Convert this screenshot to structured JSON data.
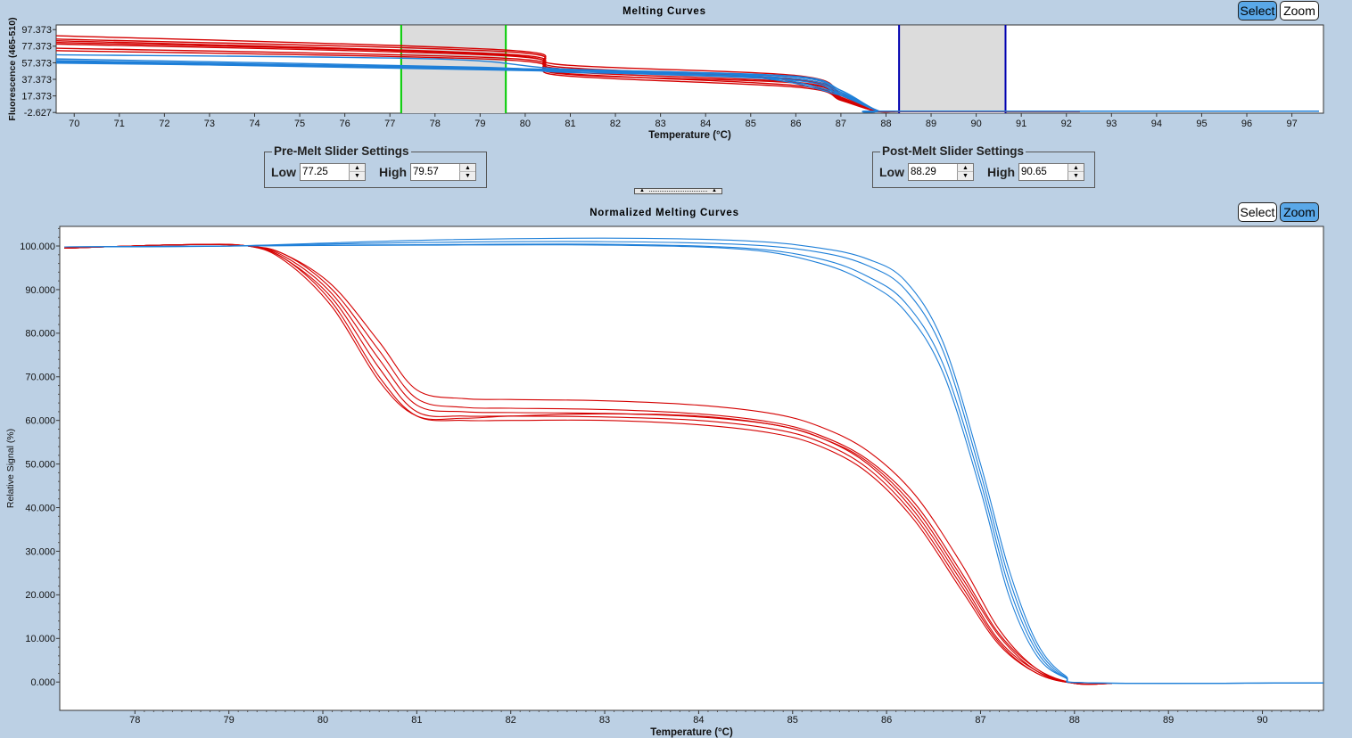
{
  "top_chart": {
    "title": "Melting Curves",
    "select_label": "Select",
    "zoom_label": "Zoom",
    "active_mode": "select"
  },
  "pre_melt": {
    "legend": "Pre-Melt Slider Settings",
    "low_label": "Low",
    "low_value": "77.25",
    "high_label": "High",
    "high_value": "79.57"
  },
  "post_melt": {
    "legend": "Post-Melt Slider Settings",
    "low_label": "Low",
    "low_value": "88.29",
    "high_label": "High",
    "high_value": "90.65"
  },
  "bottom_chart": {
    "title": "Normalized Melting Curves",
    "select_label": "Select",
    "zoom_label": "Zoom",
    "active_mode": "zoom"
  },
  "colors": {
    "background": "#bcd0e4",
    "red_series": "#d40000",
    "blue_series": "#1e7fd8",
    "pre_melt_slider": "#00cc00",
    "post_melt_slider": "#0000b0",
    "slider_region": "#dcdcdc",
    "active_button": "#5aa8e8"
  },
  "chart_data": [
    {
      "type": "line",
      "title": "Melting Curves",
      "xlabel": "Temperature (°C)",
      "ylabel": "Fluorescence (465-510)",
      "xlim": [
        69.6,
        97.7
      ],
      "ylim": [
        -3.5,
        103
      ],
      "x_ticks": [
        "70",
        "71",
        "72",
        "73",
        "74",
        "75",
        "76",
        "77",
        "78",
        "79",
        "80",
        "81",
        "82",
        "83",
        "84",
        "85",
        "86",
        "87",
        "88",
        "89",
        "90",
        "91",
        "92",
        "93",
        "94",
        "95",
        "96",
        "97"
      ],
      "y_ticks": [
        "97.373",
        "77.373",
        "57.373",
        "37.373",
        "17.373",
        "-2.627"
      ],
      "grid": false,
      "sliders": {
        "pre_melt": {
          "low": 77.25,
          "high": 79.57,
          "color": "#00cc00"
        },
        "post_melt": {
          "low": 88.29,
          "high": 90.65,
          "color": "#0000b0"
        }
      },
      "series": [
        {
          "group": "red",
          "x": [
            69.6,
            79.5,
            80.8,
            86,
            87,
            87.7,
            88.2
          ],
          "y": [
            90,
            73,
            55,
            42,
            20,
            0,
            -1.5
          ]
        },
        {
          "group": "red",
          "x": [
            69.6,
            79.5,
            80.8,
            86,
            87,
            87.7,
            88.2
          ],
          "y": [
            86,
            71,
            52,
            38,
            18,
            0,
            -1.5
          ]
        },
        {
          "group": "red",
          "x": [
            69.6,
            79.5,
            80.8,
            86,
            87,
            87.7,
            88.2
          ],
          "y": [
            84,
            68,
            50,
            37,
            16,
            0,
            -1.5
          ]
        },
        {
          "group": "red",
          "x": [
            69.6,
            79.5,
            80.8,
            86,
            87,
            87.7,
            88.2
          ],
          "y": [
            80,
            66,
            47,
            34,
            15,
            0,
            -1.5
          ]
        },
        {
          "group": "red",
          "x": [
            69.6,
            79.5,
            80.8,
            86,
            87,
            87.7,
            88.2
          ],
          "y": [
            75,
            63,
            45,
            30,
            13,
            0,
            -1.5
          ]
        },
        {
          "group": "red",
          "x": [
            69.6,
            79.5,
            80.8,
            86,
            87,
            87.7,
            88.2
          ],
          "y": [
            72,
            61,
            42,
            28,
            12,
            0,
            -1.5
          ]
        },
        {
          "group": "red",
          "x": [
            69.6,
            79.5,
            80.8,
            86,
            87,
            87.7,
            88.2,
            92.3
          ],
          "y": [
            82,
            67,
            44,
            33,
            14,
            0,
            -1.5,
            -1.5
          ]
        },
        {
          "group": "blue",
          "x": [
            69.6,
            80,
            82,
            86,
            87,
            87.8,
            88.3,
            97.6
          ],
          "y": [
            59,
            49,
            47,
            40,
            22,
            0,
            -1,
            -1
          ]
        },
        {
          "group": "blue",
          "x": [
            69.6,
            80,
            82,
            86,
            87,
            87.8,
            88.3,
            97.6
          ],
          "y": [
            58,
            48,
            46,
            38,
            20,
            0,
            -1,
            -1
          ]
        },
        {
          "group": "blue",
          "x": [
            69.6,
            80,
            82,
            86,
            87,
            87.8,
            88.3,
            97.6
          ],
          "y": [
            60,
            50,
            45,
            36,
            18,
            0,
            -1,
            -1
          ]
        },
        {
          "group": "blue",
          "x": [
            69.6,
            80,
            82,
            86,
            87,
            87.8,
            88.3,
            97.6
          ],
          "y": [
            57,
            50,
            48,
            41,
            24,
            0,
            -1,
            -1
          ]
        },
        {
          "group": "blue",
          "x": [
            69.6,
            78,
            80.8,
            85,
            87,
            87.8,
            88.3,
            97.6
          ],
          "y": [
            67,
            62,
            50,
            42,
            20,
            0,
            -1,
            -1
          ]
        },
        {
          "group": "blue",
          "x": [
            69.6,
            79,
            80.8,
            85,
            87,
            87.8,
            88.3,
            97.6
          ],
          "y": [
            62,
            52,
            46,
            40,
            18,
            0,
            -1,
            -1
          ]
        }
      ]
    },
    {
      "type": "line",
      "title": "Normalized Melting Curves",
      "xlabel": "Temperature (°C)",
      "ylabel": "Relative Signal (%)",
      "xlim": [
        77.2,
        90.65
      ],
      "ylim": [
        -6.5,
        104.5
      ],
      "x_ticks": [
        "78",
        "79",
        "80",
        "81",
        "82",
        "83",
        "84",
        "85",
        "86",
        "87",
        "88",
        "89",
        "90"
      ],
      "y_ticks": [
        "0.000",
        "10.000",
        "20.000",
        "30.000",
        "40.000",
        "50.000",
        "60.000",
        "70.000",
        "80.000",
        "90.000",
        "100.000"
      ],
      "grid": false,
      "series": [
        {
          "group": "red",
          "x": [
            77.25,
            78.5,
            79.2,
            79.6,
            80.1,
            80.6,
            81.0,
            81.5,
            82,
            83,
            84,
            84.8,
            85.3,
            85.8,
            86.3,
            86.8,
            87.2,
            87.6,
            88.0,
            88.4
          ],
          "y": [
            99.5,
            100.3,
            100,
            98,
            91,
            78,
            67,
            65,
            64.8,
            64.5,
            63.5,
            61.5,
            58.5,
            53,
            43,
            27,
            12,
            3,
            -0.3,
            -0.3
          ]
        },
        {
          "group": "red",
          "x": [
            77.25,
            78.5,
            79.2,
            79.6,
            80.1,
            80.6,
            81.0,
            81.5,
            82,
            83,
            84,
            84.8,
            85.3,
            85.8,
            86.3,
            86.8,
            87.2,
            87.6,
            88.0,
            88.4
          ],
          "y": [
            99.5,
            100.3,
            100,
            98,
            90,
            76,
            65,
            63,
            62.8,
            62.5,
            61.5,
            59.5,
            56.5,
            51,
            41,
            25,
            11,
            3,
            -0.3,
            -0.3
          ]
        },
        {
          "group": "red",
          "x": [
            77.25,
            78.5,
            79.2,
            79.6,
            80.1,
            80.6,
            81.0,
            81.5,
            82,
            83,
            84,
            84.8,
            85.3,
            85.8,
            86.3,
            86.8,
            87.2,
            87.6,
            88.0,
            88.4
          ],
          "y": [
            99.5,
            100.3,
            100,
            97.5,
            89,
            74,
            63.5,
            62,
            61.8,
            61.6,
            60.8,
            59,
            56,
            50.5,
            40,
            24,
            10.5,
            2.5,
            -0.3,
            -0.3
          ]
        },
        {
          "group": "red",
          "x": [
            77.25,
            78.5,
            79.2,
            79.6,
            80.1,
            80.6,
            81.0,
            81.5,
            82,
            83,
            84,
            84.8,
            85.3,
            85.8,
            86.3,
            86.8,
            87.2,
            87.6,
            88.0,
            88.4
          ],
          "y": [
            99.5,
            100.3,
            100,
            97,
            88,
            72,
            62,
            61,
            61,
            60.8,
            60,
            58,
            55,
            49,
            38,
            22,
            9,
            2,
            -0.3,
            -0.3
          ]
        },
        {
          "group": "red",
          "x": [
            77.25,
            78.5,
            79.2,
            79.6,
            80.1,
            80.6,
            81.0,
            81.5,
            82,
            83,
            84,
            84.8,
            85.3,
            85.8,
            86.3,
            86.8,
            87.2,
            87.6,
            88.0,
            88.4
          ],
          "y": [
            99.5,
            100.3,
            100,
            97,
            87,
            70,
            61,
            60,
            60,
            60,
            59,
            57,
            54,
            48,
            37,
            21,
            8.5,
            2,
            -0.3,
            -0.3
          ]
        },
        {
          "group": "red",
          "x": [
            77.25,
            78.5,
            79.2,
            79.6,
            80.1,
            80.6,
            81.0,
            81.5,
            82,
            83,
            84,
            84.8,
            85.3,
            85.8,
            86.3,
            86.8,
            87.2,
            87.6,
            88.0,
            88.4
          ],
          "y": [
            99.5,
            100.3,
            100,
            96.5,
            86,
            69,
            61,
            60.5,
            61,
            61.5,
            61,
            59,
            56,
            50,
            39,
            23,
            9.5,
            2.5,
            -0.3,
            -0.3
          ]
        },
        {
          "group": "blue",
          "x": [
            77.25,
            79,
            81,
            83,
            84.5,
            85.3,
            85.8,
            86.2,
            86.6,
            87.0,
            87.3,
            87.6,
            87.9,
            88.2,
            90.65
          ],
          "y": [
            99.8,
            100,
            101.3,
            101.8,
            101.2,
            99.5,
            97,
            92,
            78,
            50,
            26,
            9,
            1.5,
            -0.2,
            -0.2
          ]
        },
        {
          "group": "blue",
          "x": [
            77.25,
            79,
            81,
            83,
            84.5,
            85.3,
            85.8,
            86.2,
            86.6,
            87.0,
            87.3,
            87.6,
            87.9,
            88.2,
            90.65
          ],
          "y": [
            99.8,
            100,
            100.8,
            101,
            100.3,
            98.5,
            95.5,
            90,
            76,
            48,
            24,
            8,
            1.2,
            -0.2,
            -0.2
          ]
        },
        {
          "group": "blue",
          "x": [
            77.25,
            79,
            81,
            83,
            84.5,
            85.3,
            85.8,
            86.2,
            86.6,
            87.0,
            87.3,
            87.6,
            87.9,
            88.2,
            90.65
          ],
          "y": [
            99.8,
            100,
            100.3,
            100.4,
            99.5,
            97,
            93,
            87,
            73,
            46,
            22,
            7,
            1,
            -0.2,
            -0.2
          ]
        },
        {
          "group": "blue",
          "x": [
            77.25,
            79,
            81,
            83,
            84.5,
            85.3,
            85.8,
            86.2,
            86.6,
            87.0,
            87.3,
            87.6,
            87.9,
            88.2,
            90.65
          ],
          "y": [
            99.8,
            100,
            100.2,
            100.2,
            99.2,
            96,
            91.5,
            85,
            71,
            44,
            20,
            6,
            1,
            -0.2,
            -0.2
          ]
        }
      ]
    }
  ]
}
